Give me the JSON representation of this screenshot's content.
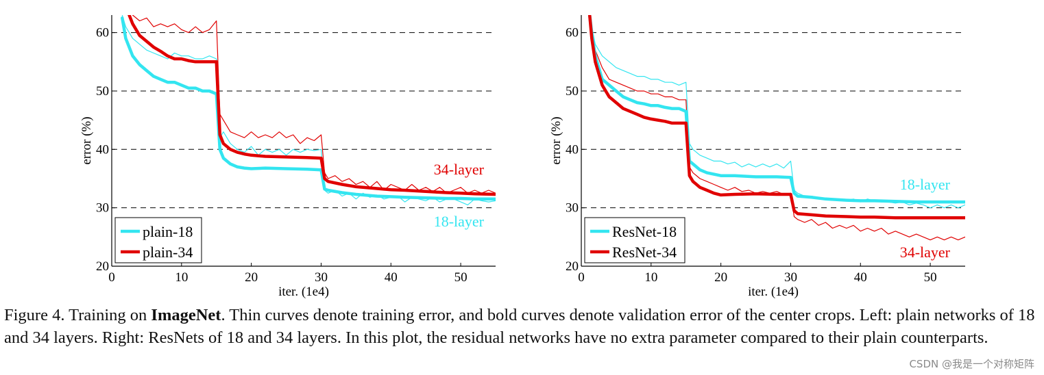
{
  "chart_data": [
    {
      "type": "line",
      "xlabel": "iter. (1e4)",
      "ylabel": "error (%)",
      "xlim": [
        0,
        55
      ],
      "ylim": [
        20,
        63
      ],
      "xticks": [
        0,
        10,
        20,
        30,
        40,
        50
      ],
      "yticks": [
        20,
        30,
        40,
        50,
        60
      ],
      "grid": "horizontal dashed",
      "legend_position": "bottom-left",
      "legend": [
        "plain-18",
        "plain-34"
      ],
      "annotations": [
        {
          "text": "34-layer",
          "color": "#e00000"
        },
        {
          "text": "18-layer",
          "color": "#33e5f0"
        }
      ],
      "series": [
        {
          "name": "plain-18",
          "kind": "validation",
          "color": "#33e5f0",
          "x": [
            1.5,
            2,
            3,
            4,
            5,
            6,
            7,
            8,
            9,
            10,
            11,
            12,
            13,
            14,
            15,
            15.5,
            16,
            17,
            18,
            19,
            20,
            22,
            25,
            28,
            30,
            30.5,
            31,
            33,
            35,
            38,
            40,
            42,
            45,
            48,
            50,
            52,
            55
          ],
          "y": [
            62.5,
            59,
            56,
            54.5,
            53.5,
            52.5,
            52,
            51.5,
            51.5,
            51,
            50.5,
            50.5,
            50,
            50,
            49.5,
            40,
            38.5,
            37.5,
            37,
            36.8,
            36.7,
            36.8,
            36.7,
            36.6,
            36.5,
            33.2,
            33,
            32.6,
            32.3,
            32,
            31.9,
            31.8,
            31.7,
            31.6,
            31.6,
            31.5,
            31.5
          ]
        },
        {
          "name": "plain-34",
          "kind": "validation",
          "color": "#e00000",
          "x": [
            2.5,
            3,
            4,
            5,
            6,
            7,
            8,
            9,
            10,
            11,
            12,
            13,
            14,
            15,
            15.5,
            16,
            17,
            18,
            19,
            20,
            22,
            25,
            28,
            30,
            30.5,
            31,
            33,
            35,
            38,
            40,
            42,
            45,
            48,
            50,
            52,
            55
          ],
          "y": [
            63,
            61.5,
            59.5,
            58.5,
            57.5,
            56.8,
            56,
            55.5,
            55.5,
            55.2,
            55,
            55,
            55,
            55,
            42.5,
            41,
            40,
            39.5,
            39.2,
            39,
            38.8,
            38.7,
            38.6,
            38.5,
            35,
            34.5,
            34,
            33.6,
            33.3,
            33.1,
            33,
            32.8,
            32.6,
            32.5,
            32.4,
            32.3
          ]
        },
        {
          "name": "plain-18",
          "kind": "training",
          "color": "#33e5f0",
          "x": [
            1.5,
            2,
            3,
            4,
            5,
            6,
            7,
            8,
            9,
            10,
            11,
            12,
            13,
            14,
            15,
            15.5,
            16,
            17,
            18,
            19,
            20,
            21,
            22,
            23,
            24,
            25,
            26,
            27,
            28,
            29,
            30,
            30.5,
            31,
            32,
            33,
            34,
            35,
            36,
            37,
            38,
            39,
            40,
            41,
            42,
            43,
            44,
            45,
            46,
            47,
            48,
            49,
            50,
            51,
            52,
            53,
            54,
            55
          ],
          "y": [
            63,
            61,
            59,
            58,
            57,
            56.5,
            56,
            55.5,
            56.5,
            56,
            56,
            55.5,
            55.5,
            56,
            55.5,
            42,
            43,
            41,
            40,
            39.5,
            40.5,
            39,
            40,
            39.5,
            40,
            39,
            40,
            39.5,
            40,
            39.8,
            40,
            33,
            32.5,
            33,
            32,
            32.5,
            31.5,
            32.5,
            31.8,
            32.2,
            31.5,
            31.8,
            32,
            31,
            31.8,
            31.5,
            31.2,
            31.8,
            31,
            31.5,
            31.5,
            31,
            30.5,
            31.5,
            31.2,
            31,
            31.2
          ]
        },
        {
          "name": "plain-34",
          "kind": "training",
          "color": "#e00000",
          "x": [
            3,
            4,
            5,
            6,
            7,
            8,
            9,
            10,
            11,
            12,
            13,
            14,
            15,
            15.5,
            16,
            17,
            18,
            19,
            20,
            21,
            22,
            23,
            24,
            25,
            26,
            27,
            28,
            29,
            30,
            30.5,
            31,
            32,
            33,
            34,
            35,
            36,
            37,
            38,
            39,
            40,
            41,
            42,
            43,
            44,
            45,
            46,
            47,
            48,
            49,
            50,
            51,
            52,
            53,
            54,
            55
          ],
          "y": [
            63,
            62,
            62.5,
            61,
            61.5,
            61,
            61.5,
            60.5,
            60,
            61,
            60,
            60.5,
            62,
            46,
            45,
            43,
            42.5,
            42,
            43,
            42,
            42.5,
            42,
            43,
            42,
            42.5,
            41,
            42,
            41.5,
            42.5,
            36,
            35,
            35.5,
            34.5,
            35,
            34,
            34.5,
            33.5,
            34.5,
            33,
            34,
            33.5,
            33,
            34,
            33,
            33.5,
            32.8,
            33.5,
            32.5,
            33,
            33.5,
            32.5,
            33,
            32.5,
            33,
            32.5
          ]
        }
      ]
    },
    {
      "type": "line",
      "xlabel": "iter. (1e4)",
      "ylabel": "error (%)",
      "xlim": [
        0,
        55
      ],
      "ylim": [
        20,
        63
      ],
      "xticks": [
        0,
        10,
        20,
        30,
        40,
        50
      ],
      "yticks": [
        20,
        30,
        40,
        50,
        60
      ],
      "grid": "horizontal dashed",
      "legend_position": "bottom-left",
      "legend": [
        "ResNet-18",
        "ResNet-34"
      ],
      "annotations": [
        {
          "text": "18-layer",
          "color": "#33e5f0"
        },
        {
          "text": "34-layer",
          "color": "#e00000"
        }
      ],
      "series": [
        {
          "name": "ResNet-18",
          "kind": "validation",
          "color": "#33e5f0",
          "x": [
            1.2,
            1.5,
            2,
            3,
            4,
            5,
            6,
            7,
            8,
            9,
            10,
            11,
            12,
            13,
            14,
            15,
            15.5,
            16,
            17,
            18,
            20,
            22,
            25,
            28,
            30,
            30.5,
            31,
            33,
            35,
            38,
            40,
            42,
            45,
            48,
            50,
            52,
            55
          ],
          "y": [
            63,
            60,
            56,
            52,
            51,
            50,
            49,
            48.5,
            48,
            47.8,
            47.5,
            47.5,
            47.2,
            47,
            47,
            46.5,
            38,
            37.5,
            36.5,
            36,
            35.5,
            35.5,
            35.3,
            35.3,
            35.2,
            32.5,
            32,
            31.8,
            31.5,
            31.3,
            31.2,
            31.2,
            31.1,
            31,
            31,
            31,
            31
          ]
        },
        {
          "name": "ResNet-34",
          "kind": "validation",
          "color": "#e00000",
          "x": [
            1.2,
            1.5,
            2,
            3,
            4,
            5,
            6,
            7,
            8,
            9,
            10,
            11,
            12,
            13,
            14,
            15,
            15.5,
            16,
            17,
            18,
            19,
            20,
            22,
            25,
            28,
            30,
            30.5,
            31,
            33,
            35,
            38,
            40,
            42,
            45,
            48,
            50,
            52,
            55
          ],
          "y": [
            63,
            59,
            55,
            51,
            49,
            48,
            47,
            46.5,
            46,
            45.5,
            45.2,
            45,
            44.8,
            44.5,
            44.5,
            44.5,
            35.5,
            34.5,
            33.5,
            33,
            32.5,
            32.2,
            32.3,
            32.4,
            32.3,
            32.3,
            29.5,
            29,
            28.8,
            28.6,
            28.5,
            28.4,
            28.4,
            28.3,
            28.3,
            28.3,
            28.3,
            28.3
          ]
        },
        {
          "name": "ResNet-18",
          "kind": "training",
          "color": "#33e5f0",
          "x": [
            1.2,
            1.5,
            2,
            3,
            4,
            5,
            6,
            7,
            8,
            9,
            10,
            11,
            12,
            13,
            14,
            15,
            15.5,
            16,
            17,
            18,
            19,
            20,
            21,
            22,
            23,
            24,
            25,
            26,
            27,
            28,
            29,
            30,
            30.5,
            31,
            32,
            33,
            34,
            35,
            36,
            37,
            38,
            39,
            40,
            41,
            42,
            43,
            44,
            45,
            46,
            47,
            48,
            49,
            50,
            51,
            52,
            53,
            54,
            55
          ],
          "y": [
            63,
            61,
            58,
            56,
            55,
            54,
            53.5,
            53,
            52.5,
            52.5,
            52,
            52,
            51.5,
            51.5,
            51,
            51.5,
            41,
            40,
            39,
            38.5,
            38,
            38,
            37.5,
            37.8,
            37,
            37.5,
            37,
            37.5,
            37,
            37.5,
            36.8,
            38,
            33,
            32.5,
            32,
            32,
            31.8,
            31.5,
            31.5,
            31.5,
            31.3,
            31.5,
            31,
            31.5,
            31.2,
            31,
            31,
            30.8,
            31,
            30.5,
            30.8,
            30.5,
            30,
            30.5,
            30,
            30.5,
            30,
            30.5
          ]
        },
        {
          "name": "ResNet-34",
          "kind": "training",
          "color": "#e00000",
          "x": [
            1.2,
            1.5,
            2,
            3,
            4,
            5,
            6,
            7,
            8,
            9,
            10,
            11,
            12,
            13,
            14,
            15,
            15.5,
            16,
            17,
            18,
            19,
            20,
            21,
            22,
            23,
            24,
            25,
            26,
            27,
            28,
            29,
            30,
            30.5,
            31,
            32,
            33,
            34,
            35,
            36,
            37,
            38,
            39,
            40,
            41,
            42,
            43,
            44,
            45,
            46,
            47,
            48,
            49,
            50,
            51,
            52,
            53,
            54,
            55
          ],
          "y": [
            63,
            60,
            57,
            54,
            52,
            51.5,
            51,
            50.5,
            50,
            50,
            49.5,
            49.5,
            49,
            49,
            48.5,
            48.5,
            37,
            36,
            35,
            34.5,
            34,
            33.5,
            33,
            33.5,
            32.8,
            33,
            32.5,
            32.8,
            32.5,
            32.8,
            32.3,
            32.5,
            28.5,
            28,
            27.5,
            28,
            27,
            27.5,
            26.5,
            27,
            26.5,
            27,
            26,
            26.5,
            26,
            26.5,
            25.5,
            26,
            25.5,
            25,
            25.5,
            25,
            24.5,
            25,
            24.5,
            25,
            24.5,
            25
          ]
        }
      ]
    }
  ],
  "caption": {
    "prefix": "Figure 4. Training on ",
    "bold": "ImageNet",
    "rest": ". Thin curves denote training error, and bold curves denote validation error of the center crops. Left: plain networks of 18 and 34 layers. Right: ResNets of 18 and 34 layers. In this plot, the residual networks have no extra parameter compared to their plain counterparts."
  },
  "watermark": "CSDN @我是一个对称矩阵"
}
